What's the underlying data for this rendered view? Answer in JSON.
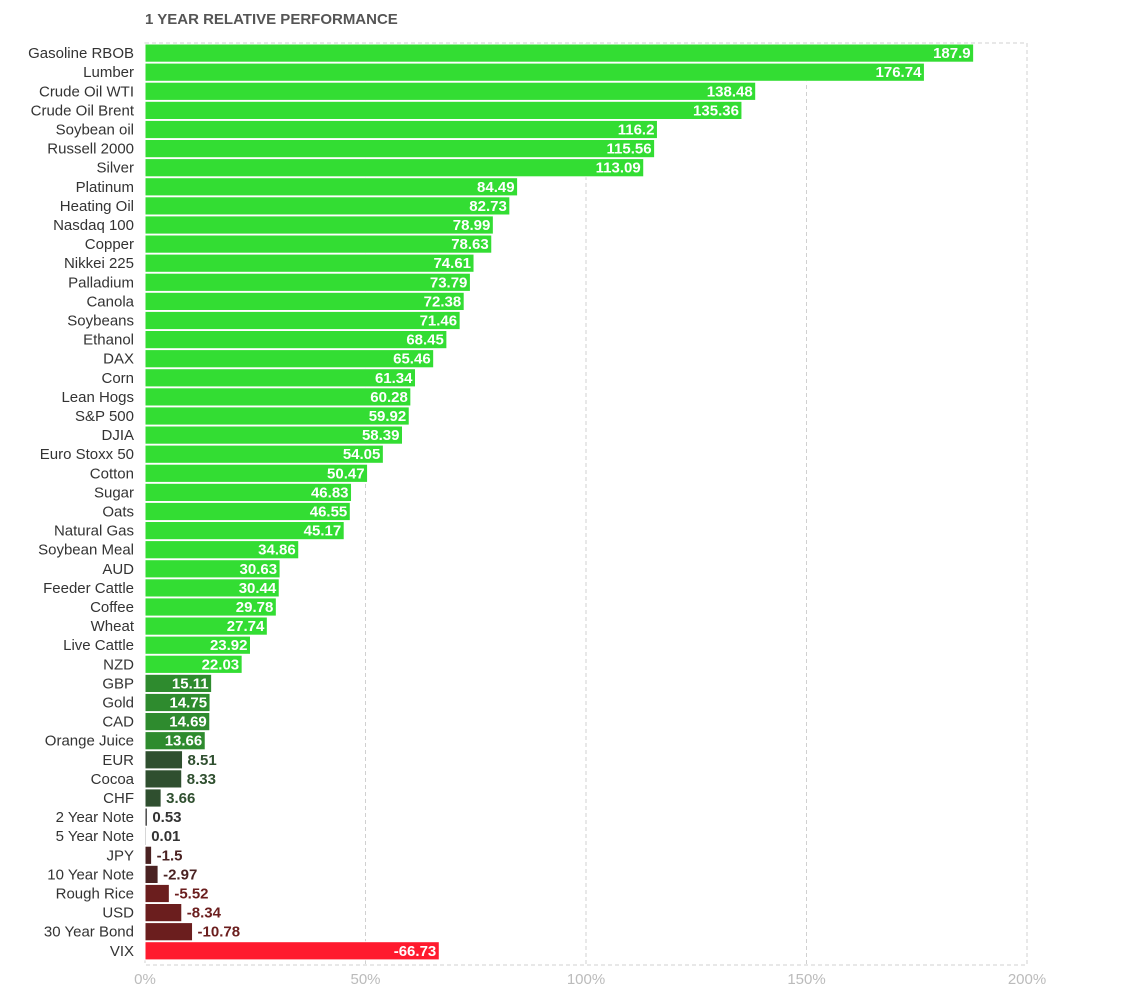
{
  "chart_data": {
    "type": "bar",
    "orientation": "horizontal",
    "title": "1 YEAR RELATIVE PERFORMANCE",
    "xlabel": "",
    "ylabel": "",
    "xlim": [
      0,
      200
    ],
    "x_ticks": [
      "0%",
      "50%",
      "100%",
      "150%",
      "200%"
    ],
    "x_tick_values": [
      0,
      50,
      100,
      150,
      200
    ],
    "grid": true,
    "categories": [
      "Gasoline RBOB",
      "Lumber",
      "Crude Oil WTI",
      "Crude Oil Brent",
      "Soybean oil",
      "Russell 2000",
      "Silver",
      "Platinum",
      "Heating Oil",
      "Nasdaq 100",
      "Copper",
      "Nikkei 225",
      "Palladium",
      "Canola",
      "Soybeans",
      "Ethanol",
      "DAX",
      "Corn",
      "Lean Hogs",
      "S&P 500",
      "DJIA",
      "Euro Stoxx 50",
      "Cotton",
      "Sugar",
      "Oats",
      "Natural Gas",
      "Soybean Meal",
      "AUD",
      "Feeder Cattle",
      "Coffee",
      "Wheat",
      "Live Cattle",
      "NZD",
      "GBP",
      "Gold",
      "CAD",
      "Orange Juice",
      "EUR",
      "Cocoa",
      "CHF",
      "2 Year Note",
      "5 Year Note",
      "JPY",
      "10 Year Note",
      "Rough Rice",
      "USD",
      "30 Year Bond",
      "VIX"
    ],
    "values": [
      187.9,
      176.74,
      138.48,
      135.36,
      116.2,
      115.56,
      113.09,
      84.49,
      82.73,
      78.99,
      78.63,
      74.61,
      73.79,
      72.38,
      71.46,
      68.45,
      65.46,
      61.34,
      60.28,
      59.92,
      58.39,
      54.05,
      50.47,
      46.83,
      46.55,
      45.17,
      34.86,
      30.63,
      30.44,
      29.78,
      27.74,
      23.92,
      22.03,
      15.11,
      14.75,
      14.69,
      13.66,
      8.51,
      8.33,
      3.66,
      0.53,
      0.01,
      -1.5,
      -2.97,
      -5.52,
      -8.34,
      -10.78,
      -66.73
    ],
    "value_labels": [
      "187.9",
      "176.74",
      "138.48",
      "135.36",
      "116.2",
      "115.56",
      "113.09",
      "84.49",
      "82.73",
      "78.99",
      "78.63",
      "74.61",
      "73.79",
      "72.38",
      "71.46",
      "68.45",
      "65.46",
      "61.34",
      "60.28",
      "59.92",
      "58.39",
      "54.05",
      "50.47",
      "46.83",
      "46.55",
      "45.17",
      "34.86",
      "30.63",
      "30.44",
      "29.78",
      "27.74",
      "23.92",
      "22.03",
      "15.11",
      "14.75",
      "14.69",
      "13.66",
      "8.51",
      "8.33",
      "3.66",
      "0.53",
      "0.01",
      "-1.5",
      "-2.97",
      "-5.52",
      "-8.34",
      "-10.78",
      "-66.73"
    ],
    "colors": {
      "strong_positive": "#33dd33",
      "mid_positive": "#2e8b2e",
      "weak_positive": "#2f4f2f",
      "near_zero": "#333333",
      "weak_negative": "#4a2222",
      "mid_negative": "#6b1e1e",
      "strong_negative": "#ff1a2e"
    }
  }
}
